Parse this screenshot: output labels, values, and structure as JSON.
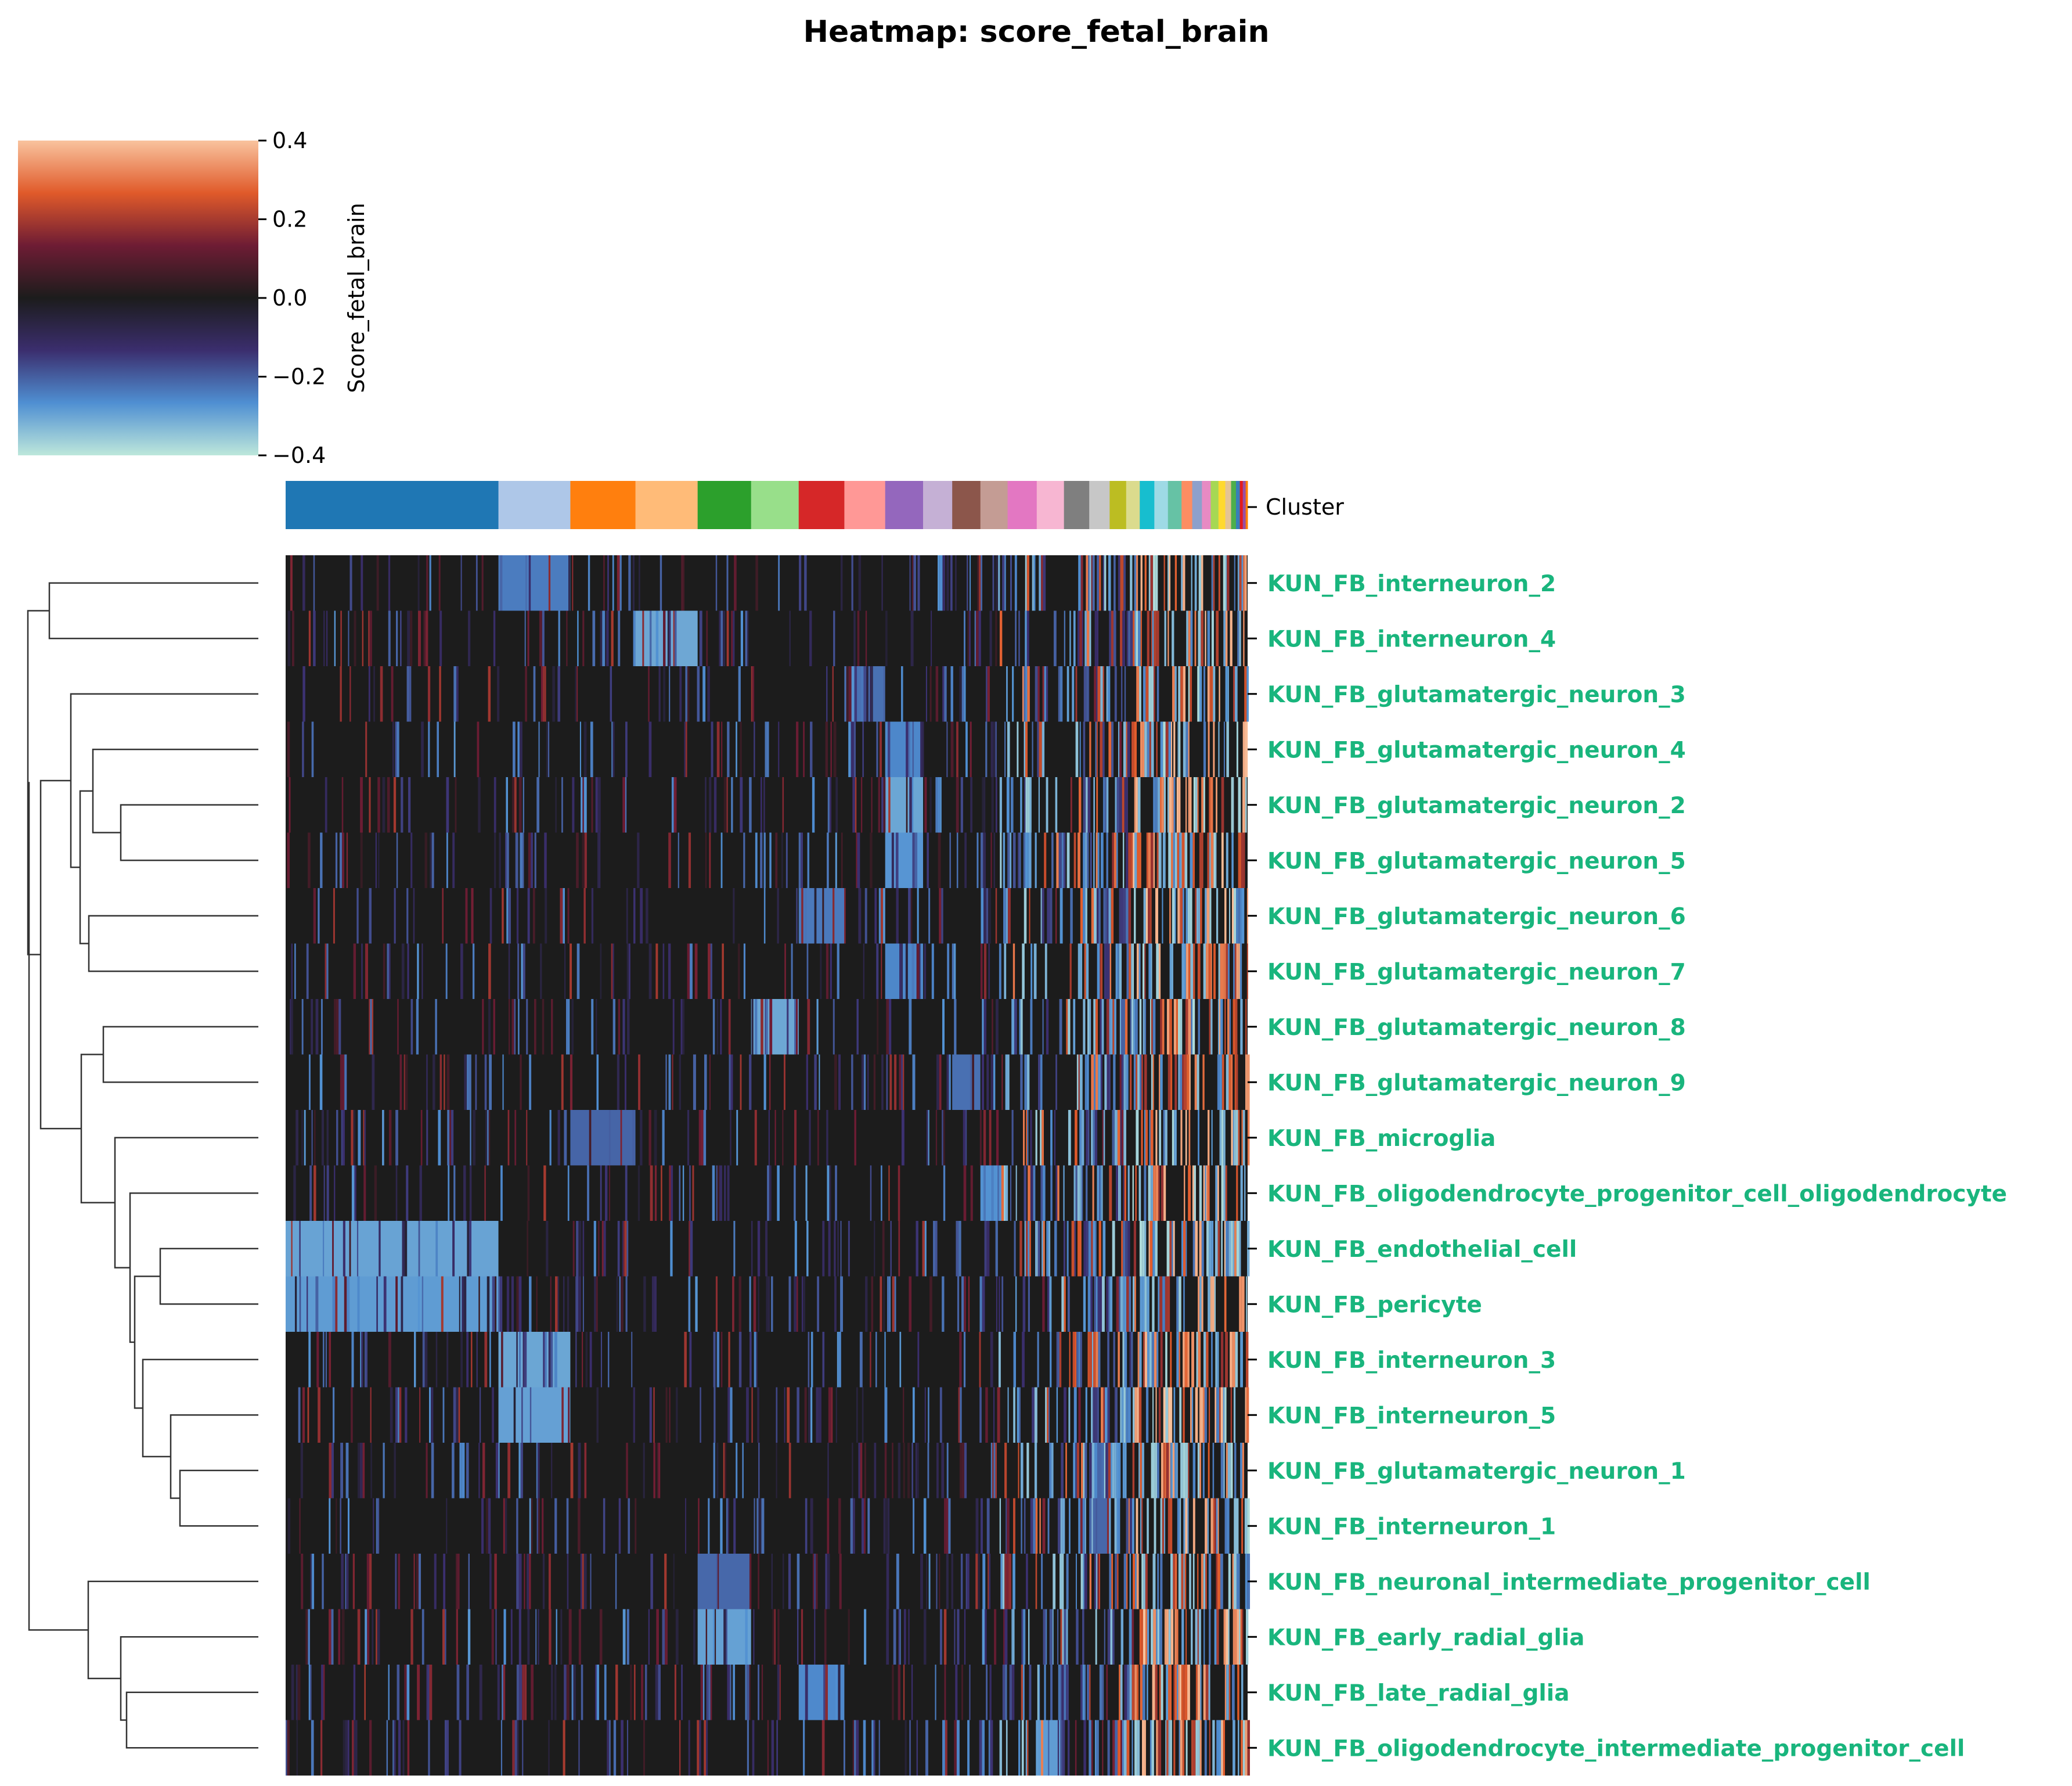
{
  "chart_data": {
    "type": "heatmap",
    "title": "Heatmap: score_fetal_brain",
    "colorbar": {
      "label": "Score_fetal_brain",
      "range": [
        -0.4,
        0.4
      ],
      "ticks": [
        "0.4",
        "0.2",
        "0.0",
        "−0.2",
        "−0.4"
      ],
      "tick_values": [
        0.4,
        0.2,
        0.0,
        -0.2,
        -0.4
      ],
      "colormap": "icefire",
      "stops": [
        "#bde7db",
        "#4f8fd2",
        "#3b2e6e",
        "#1c1c1c",
        "#6e1c34",
        "#e05a2a",
        "#f9c39e"
      ]
    },
    "annotation_bar": {
      "label": "Cluster",
      "clusters": [
        {
          "color": "#1f77b4",
          "fraction": 0.219
        },
        {
          "color": "#aec7e8",
          "fraction": 0.074
        },
        {
          "color": "#ff7f0e",
          "fraction": 0.067
        },
        {
          "color": "#ffbb78",
          "fraction": 0.064
        },
        {
          "color": "#2ca02c",
          "fraction": 0.055
        },
        {
          "color": "#98df8a",
          "fraction": 0.049
        },
        {
          "color": "#d62728",
          "fraction": 0.047
        },
        {
          "color": "#ff9896",
          "fraction": 0.042
        },
        {
          "color": "#9467bd",
          "fraction": 0.039
        },
        {
          "color": "#c5b0d5",
          "fraction": 0.03
        },
        {
          "color": "#8c564b",
          "fraction": 0.029
        },
        {
          "color": "#c49c94",
          "fraction": 0.028
        },
        {
          "color": "#e377c2",
          "fraction": 0.03
        },
        {
          "color": "#f7b6d2",
          "fraction": 0.028
        },
        {
          "color": "#7f7f7f",
          "fraction": 0.026
        },
        {
          "color": "#c7c7c7",
          "fraction": 0.021
        },
        {
          "color": "#bcbd22",
          "fraction": 0.017
        },
        {
          "color": "#dbdb8d",
          "fraction": 0.014
        },
        {
          "color": "#17becf",
          "fraction": 0.015
        },
        {
          "color": "#9edae5",
          "fraction": 0.014
        },
        {
          "color": "#66c2a5",
          "fraction": 0.014
        },
        {
          "color": "#fc8d62",
          "fraction": 0.011
        },
        {
          "color": "#8da0cb",
          "fraction": 0.01
        },
        {
          "color": "#e78ac3",
          "fraction": 0.009
        },
        {
          "color": "#a6d854",
          "fraction": 0.008
        },
        {
          "color": "#ffd92f",
          "fraction": 0.007
        },
        {
          "color": "#e5c494",
          "fraction": 0.006
        },
        {
          "color": "#4daf4a",
          "fraction": 0.005
        },
        {
          "color": "#377eb8",
          "fraction": 0.004
        },
        {
          "color": "#e41a1c",
          "fraction": 0.003
        },
        {
          "color": "#984ea3",
          "fraction": 0.003
        },
        {
          "color": "#ff7f00",
          "fraction": 0.002
        }
      ]
    },
    "rows": [
      "KUN_FB_interneuron_2",
      "KUN_FB_interneuron_4",
      "KUN_FB_glutamatergic_neuron_3",
      "KUN_FB_glutamatergic_neuron_4",
      "KUN_FB_glutamatergic_neuron_2",
      "KUN_FB_glutamatergic_neuron_5",
      "KUN_FB_glutamatergic_neuron_6",
      "KUN_FB_glutamatergic_neuron_7",
      "KUN_FB_glutamatergic_neuron_8",
      "KUN_FB_glutamatergic_neuron_9",
      "KUN_FB_microglia",
      "KUN_FB_oligodendrocyte_progenitor_cell_oligodendrocyte",
      "KUN_FB_endothelial_cell",
      "KUN_FB_pericyte",
      "KUN_FB_interneuron_3",
      "KUN_FB_interneuron_5",
      "KUN_FB_glutamatergic_neuron_1",
      "KUN_FB_interneuron_1",
      "KUN_FB_neuronal_intermediate_progenitor_cell",
      "KUN_FB_early_radial_glia",
      "KUN_FB_late_radial_glia",
      "KUN_FB_oligodendrocyte_intermediate_progenitor_cell"
    ],
    "row_label_color": "#19b57d",
    "highlight_cluster_for_row": [
      1,
      3,
      7,
      8,
      8,
      8,
      6,
      8,
      5,
      10,
      2,
      11,
      0,
      0,
      1,
      1,
      15,
      15,
      4,
      4,
      6,
      13
    ],
    "dendrogram": "hierarchical clustering of rows (left side)",
    "legend": "none",
    "grid": false
  }
}
